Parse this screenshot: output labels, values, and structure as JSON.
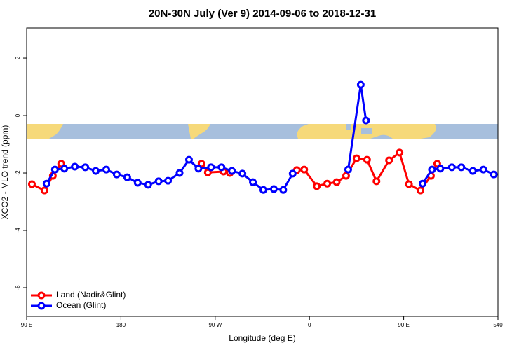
{
  "chart_data": {
    "type": "line",
    "title": "20N-30N July (Ver 9)   2014-09-06 to 2018-12-31",
    "x_label": "Longitude (deg E)",
    "y_label": "XCO2 - MLO trend (ppm)",
    "xlim": [
      90,
      540
    ],
    "xticks": [
      {
        "value": 90,
        "label": "90 E"
      },
      180,
      {
        "value": 270,
        "label": "90 W"
      },
      {
        "value": 360,
        "label": "0"
      },
      {
        "value": 450,
        "label": "90 E"
      },
      540
    ],
    "ylim": [
      -7,
      3.05
    ],
    "yticks": [
      2,
      0,
      -2,
      -4,
      -6
    ],
    "legend": "bottom-left",
    "series": [
      {
        "name": "Land (Nadir&Glint)",
        "color": "#ff0000",
        "x": [
          95,
          107,
          115,
          123,
          null,
          257,
          263,
          278,
          284,
          null,
          348,
          355,
          367,
          377,
          386,
          395,
          405,
          415,
          424,
          436,
          446,
          455,
          466,
          476,
          482
        ],
        "values": [
          -2.39,
          -2.61,
          -2.1,
          -1.68,
          null,
          -1.68,
          -1.98,
          -1.95,
          -2.0,
          null,
          -1.9,
          -1.88,
          -2.46,
          -2.37,
          -2.32,
          -2.1,
          -1.49,
          -1.54,
          -2.29,
          -1.56,
          -1.29,
          -2.39,
          -2.61,
          -2.1,
          -1.68
        ]
      },
      {
        "name": "Ocean (Glint)",
        "color": "#0000ff",
        "x": [
          109,
          117,
          126,
          136,
          146,
          156,
          166,
          176,
          186,
          196,
          206,
          216,
          225,
          236,
          245,
          254,
          266,
          276,
          286,
          296,
          306,
          316,
          326,
          335,
          344,
          null,
          397,
          409,
          414,
          null,
          468,
          477,
          485,
          496,
          505,
          516,
          526,
          536
        ],
        "values": [
          -2.37,
          -1.88,
          -1.85,
          -1.78,
          -1.8,
          -1.93,
          -1.88,
          -2.05,
          -2.15,
          -2.34,
          -2.41,
          -2.29,
          -2.27,
          -2.0,
          -1.54,
          -1.85,
          -1.8,
          -1.8,
          -1.93,
          -2.02,
          -2.32,
          -2.59,
          -2.56,
          -2.59,
          -2.02,
          null,
          -1.88,
          1.07,
          -0.17,
          null,
          -2.37,
          -1.88,
          -1.85,
          -1.8,
          -1.8,
          -1.93,
          -1.88,
          -2.05
        ]
      }
    ]
  }
}
